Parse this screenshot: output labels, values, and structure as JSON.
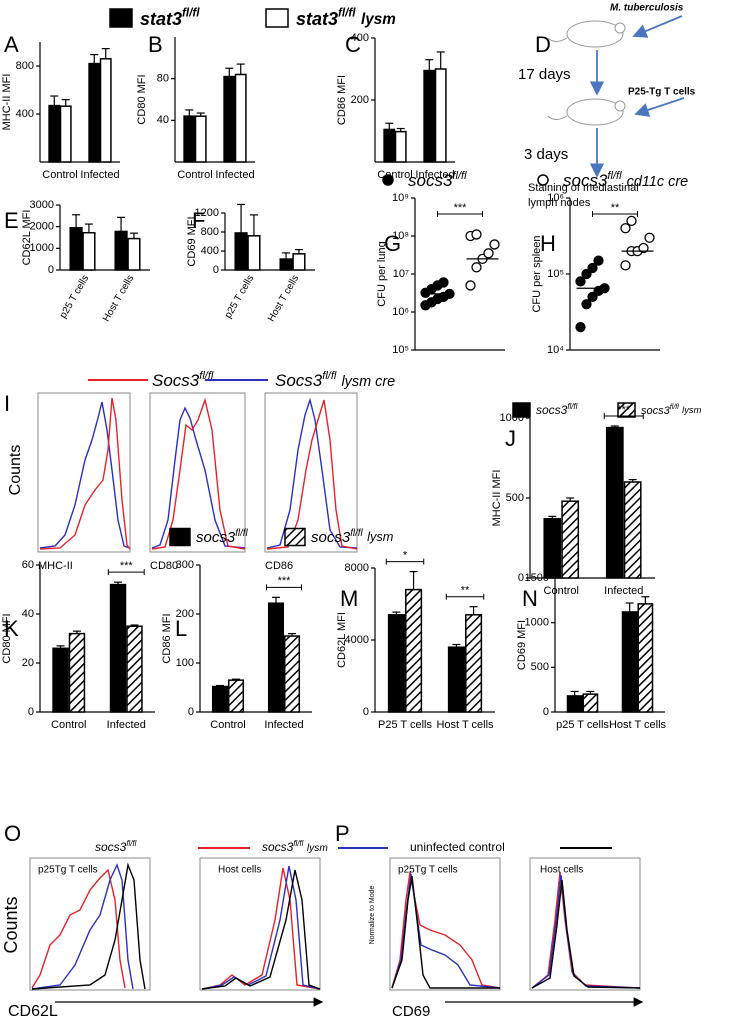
{
  "legends": {
    "top": [
      {
        "text": "stat3",
        "sup": "fl/fl",
        "color": "#000000"
      },
      {
        "text": "stat3",
        "sup": "fl/fl",
        "after": "lysm",
        "color": "#ffffff"
      }
    ],
    "I": [
      {
        "text": "Socs3",
        "sup": "fl/fl",
        "color": "#e8212a"
      },
      {
        "text": "Socs3",
        "sup": "fl/fl",
        "after": "lysm cre",
        "color": "#2b2fc0"
      }
    ],
    "J": [
      {
        "text": "socs3",
        "sup": "fl/fl",
        "color": "#000000"
      },
      {
        "text": "socs3",
        "sup": "fl/fl",
        "after": "lysm",
        "color": "#000000",
        "pattern": "hatch"
      }
    ],
    "K": [
      {
        "text": "socs3",
        "sup": "fl/fl",
        "color": "#000000"
      },
      {
        "text": "socs3",
        "sup": "fl/fl",
        "after": "lysm",
        "color": "#000000",
        "pattern": "hatch"
      }
    ],
    "O": [
      {
        "text": "socs3",
        "sup": "fl/fl",
        "color": "#e8212a"
      },
      {
        "text": "socs3",
        "sup": "fl/fl",
        "after": "lysm",
        "color": "#2b2fc0"
      },
      {
        "text": "uninfected control",
        "color": "#000000"
      }
    ]
  },
  "diagram": {
    "label": "D",
    "infection": "M. tuberculosis",
    "interval1": "17 days",
    "transfer": "P25-Tg T cells",
    "interval2": "3 days",
    "readout": [
      "Staining of mediastinal",
      "lymph nodes"
    ]
  },
  "flow": {
    "I": {
      "label": "I",
      "ylabel": "Counts",
      "plots": [
        "MHC-II",
        "CD80",
        "CD86"
      ]
    },
    "O": {
      "label": "O",
      "ylabel": "Counts",
      "xlabel": "CD62L",
      "plots": [
        "p25Tg T cells",
        "Host cells"
      ]
    },
    "P": {
      "label": "P",
      "ylabel": "Normalize to Mode",
      "xlabel": "CD69",
      "plots": [
        "p25Tg T cells",
        "Host cells"
      ]
    }
  },
  "chart_data": [
    {
      "type": "bar",
      "label": "A",
      "ylabel": "MHC-II MFI",
      "categories": [
        "Control",
        "Infected"
      ],
      "ylim": [
        0,
        1000
      ],
      "yticks": [
        400,
        800
      ],
      "series": [
        {
          "color": "#000000",
          "values": [
            470,
            820
          ],
          "errors": [
            80,
            75
          ]
        },
        {
          "color": "#ffffff",
          "values": [
            465,
            860
          ],
          "errors": [
            55,
            85
          ]
        }
      ]
    },
    {
      "type": "bar",
      "label": "B",
      "ylabel": "CD80 MFI",
      "categories": [
        "Control",
        "Infected"
      ],
      "ylim": [
        0,
        120
      ],
      "yticks": [
        40,
        80
      ],
      "series": [
        {
          "color": "#000000",
          "values": [
            44,
            82
          ],
          "errors": [
            6,
            8
          ]
        },
        {
          "color": "#ffffff",
          "values": [
            44,
            84
          ],
          "errors": [
            3,
            10
          ]
        }
      ]
    },
    {
      "type": "bar",
      "label": "C",
      "ylabel": "CD86 MFI",
      "categories": [
        "Control",
        "Infected"
      ],
      "ylim": [
        0,
        400
      ],
      "yticks": [
        200,
        400
      ],
      "series": [
        {
          "color": "#000000",
          "values": [
            105,
            295
          ],
          "errors": [
            20,
            35
          ]
        },
        {
          "color": "#ffffff",
          "values": [
            98,
            300
          ],
          "errors": [
            10,
            55
          ]
        }
      ]
    },
    {
      "type": "bar",
      "label": "E",
      "ylabel": "CD62L MFI",
      "categories": [
        "p25 T cells",
        "Host T cells"
      ],
      "rotated_labels": true,
      "ylim": [
        0,
        3000
      ],
      "yticks": [
        0,
        1000,
        2000,
        3000
      ],
      "series": [
        {
          "color": "#000000",
          "values": [
            1950,
            1780
          ],
          "errors": [
            600,
            650
          ]
        },
        {
          "color": "#ffffff",
          "values": [
            1720,
            1450
          ],
          "errors": [
            400,
            250
          ]
        }
      ]
    },
    {
      "type": "bar",
      "label": "F",
      "ylabel": "CD69 MFI",
      "categories": [
        "p25 T cells",
        "Host T cells"
      ],
      "rotated_labels": true,
      "ylim": [
        0,
        1200
      ],
      "yticks": [
        0,
        400,
        800,
        1200
      ],
      "series": [
        {
          "color": "#000000",
          "values": [
            780,
            230
          ],
          "errors": [
            600,
            130
          ]
        },
        {
          "color": "#ffffff",
          "values": [
            720,
            340
          ],
          "errors": [
            440,
            90
          ]
        }
      ]
    },
    {
      "type": "strip",
      "label": "G",
      "legend": {
        "text": "socs3",
        "sup": "fl/fl"
      },
      "ylabel": "CFU per lung",
      "log_scale": true,
      "ylim": [
        100000,
        1000000000
      ],
      "yticks": [
        {
          "value": 100000,
          "label": "10⁵"
        },
        {
          "value": 1000000,
          "label": "10⁶"
        },
        {
          "value": 10000000,
          "label": "10⁷"
        },
        {
          "value": 100000000,
          "label": "10⁸"
        },
        {
          "value": 1000000000,
          "label": "10⁹"
        }
      ],
      "groups": [
        {
          "marker": "filled",
          "values": [
            1500000,
            1800000,
            2200000,
            2500000,
            3000000,
            3200000,
            4000000,
            5000000,
            6000000
          ],
          "median": 3000000
        },
        {
          "marker": "open",
          "values": [
            5000000,
            15000000,
            25000000,
            35000000,
            60000000,
            100000000,
            110000000
          ],
          "median": 25000000
        }
      ],
      "annotation": "***"
    },
    {
      "type": "strip",
      "label": "H",
      "legend": {
        "text": "socs3",
        "sup": "fl/fl",
        "after": "cd11c cre"
      },
      "ylabel": "CFU per spleen",
      "log_scale": true,
      "ylim": [
        10000,
        1000000
      ],
      "yticks": [
        {
          "value": 10000,
          "label": "10⁴"
        },
        {
          "value": 100000,
          "label": "10⁵"
        },
        {
          "value": 1000000,
          "label": "10⁶"
        }
      ],
      "groups": [
        {
          "marker": "filled",
          "values": [
            20000,
            40000,
            50000,
            60000,
            65000,
            80000,
            100000,
            120000,
            150000
          ],
          "median": 65000
        },
        {
          "marker": "open",
          "values": [
            130000,
            200000,
            200000,
            220000,
            300000,
            400000,
            500000
          ],
          "median": 200000
        }
      ],
      "annotation": "**"
    },
    {
      "type": "bar",
      "label": "J",
      "ylabel": "MHC-II MFI",
      "categories": [
        "Control",
        "Infected"
      ],
      "ylim": [
        0,
        1000
      ],
      "yticks": [
        0,
        500,
        1000
      ],
      "series": [
        {
          "color": "#000000",
          "values": [
            370,
            940
          ],
          "errors": [
            15,
            10
          ]
        },
        {
          "color": "#000000",
          "pattern": "hatch",
          "values": [
            480,
            600
          ],
          "errors": [
            20,
            15
          ]
        }
      ],
      "annotations": [
        {
          "text": "***",
          "category": "Infected"
        }
      ]
    },
    {
      "type": "bar",
      "label": "K",
      "ylabel": "CD80 MFI",
      "categories": [
        "Control",
        "Infected"
      ],
      "ylim": [
        0,
        60
      ],
      "yticks": [
        0,
        20,
        40,
        60
      ],
      "series": [
        {
          "color": "#000000",
          "values": [
            26,
            52
          ],
          "errors": [
            1,
            1
          ]
        },
        {
          "color": "#000000",
          "pattern": "hatch",
          "values": [
            32,
            35
          ],
          "errors": [
            1,
            0.5
          ]
        }
      ],
      "annotations": [
        {
          "text": "***",
          "category": "Infected"
        }
      ]
    },
    {
      "type": "bar",
      "label": "L",
      "ylabel": "CD86 MFI",
      "categories": [
        "Control",
        "Infected"
      ],
      "ylim": [
        0,
        300
      ],
      "yticks": [
        0,
        100,
        200,
        300
      ],
      "series": [
        {
          "color": "#000000",
          "values": [
            52,
            222
          ],
          "errors": [
            2,
            12
          ]
        },
        {
          "color": "#000000",
          "pattern": "hatch",
          "values": [
            65,
            155
          ],
          "errors": [
            2,
            5
          ]
        }
      ],
      "annotations": [
        {
          "text": "***",
          "category": "Infected"
        }
      ]
    },
    {
      "type": "bar",
      "label": "M",
      "ylabel": "CD62L MFI",
      "categories": [
        "P25 T cells",
        "Host T cells"
      ],
      "ylim": [
        0,
        8000
      ],
      "yticks": [
        0,
        4000,
        8000
      ],
      "series": [
        {
          "color": "#000000",
          "values": [
            5400,
            3600
          ],
          "errors": [
            150,
            150
          ]
        },
        {
          "color": "#000000",
          "pattern": "hatch",
          "values": [
            6800,
            5400
          ],
          "errors": [
            1000,
            450
          ]
        }
      ],
      "annotations": [
        {
          "text": "*",
          "category": "P25 T cells"
        },
        {
          "text": "**",
          "category": "Host T cells"
        }
      ]
    },
    {
      "type": "bar",
      "label": "N",
      "ylabel": "CD69 MFI",
      "categories": [
        "p25 T cells",
        "Host T cells"
      ],
      "ylim": [
        0,
        1500
      ],
      "yticks": [
        0,
        500,
        1000,
        1500
      ],
      "series": [
        {
          "color": "#000000",
          "values": [
            180,
            1120
          ],
          "errors": [
            50,
            100
          ]
        },
        {
          "color": "#000000",
          "pattern": "hatch",
          "values": [
            200,
            1210
          ],
          "errors": [
            30,
            80
          ]
        }
      ]
    }
  ]
}
